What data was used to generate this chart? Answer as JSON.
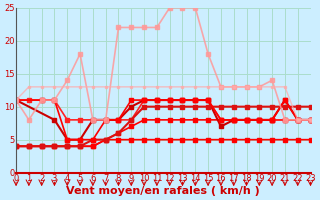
{
  "xlabel": "Vent moyen/en rafales ( km/h )",
  "ylabel": "",
  "xlim": [
    0,
    23
  ],
  "ylim": [
    0,
    25
  ],
  "yticks": [
    0,
    5,
    10,
    15,
    20,
    25
  ],
  "xticks": [
    0,
    1,
    2,
    3,
    4,
    5,
    6,
    7,
    8,
    9,
    10,
    11,
    12,
    13,
    14,
    15,
    16,
    17,
    18,
    19,
    20,
    21,
    22,
    23
  ],
  "bg_color": "#cceeff",
  "grid_color": "#aaddcc",
  "lines": [
    {
      "x": [
        0,
        1,
        2,
        3,
        4,
        5,
        6,
        7,
        8,
        9,
        10,
        11,
        12,
        13,
        14,
        15,
        16,
        17,
        18,
        19,
        20,
        21,
        22,
        23
      ],
      "y": [
        4,
        4,
        4,
        4,
        4,
        4,
        4,
        5,
        5,
        5,
        5,
        5,
        5,
        5,
        5,
        5,
        5,
        5,
        5,
        5,
        5,
        5,
        5,
        5
      ],
      "color": "#ff0000",
      "lw": 1.2,
      "marker": "s",
      "ms": 2.5,
      "alpha": 1.0
    },
    {
      "x": [
        0,
        1,
        2,
        3,
        4,
        5,
        6,
        7,
        8,
        9,
        10,
        11,
        12,
        13,
        14,
        15,
        16,
        17,
        18,
        19,
        20,
        21,
        22,
        23
      ],
      "y": [
        4,
        4,
        4,
        4,
        4,
        4,
        4,
        5,
        6,
        7,
        8,
        8,
        8,
        8,
        8,
        8,
        8,
        8,
        8,
        8,
        8,
        8,
        8,
        8
      ],
      "color": "#ff0000",
      "lw": 1.2,
      "marker": "s",
      "ms": 2.5,
      "alpha": 1.0
    },
    {
      "x": [
        0,
        1,
        2,
        3,
        4,
        5,
        6,
        7,
        8,
        9,
        10,
        11,
        12,
        13,
        14,
        15,
        16,
        17,
        18,
        19,
        20,
        21,
        22,
        23
      ],
      "y": [
        11,
        11,
        11,
        11,
        8,
        8,
        8,
        8,
        8,
        8,
        11,
        11,
        11,
        11,
        11,
        11,
        8,
        8,
        8,
        8,
        8,
        8,
        8,
        8
      ],
      "color": "#ff2222",
      "lw": 1.2,
      "marker": "s",
      "ms": 2.5,
      "alpha": 1.0
    },
    {
      "x": [
        0,
        3,
        4,
        5,
        6,
        7,
        8,
        9,
        10,
        11,
        12,
        13,
        14,
        15,
        16,
        17,
        18,
        19,
        20,
        21,
        22,
        23
      ],
      "y": [
        11,
        8,
        5,
        5,
        8,
        8,
        8,
        10,
        11,
        11,
        11,
        11,
        11,
        11,
        7,
        8,
        8,
        8,
        8,
        11,
        8,
        8
      ],
      "color": "#cc0000",
      "lw": 1.5,
      "marker": "s",
      "ms": 3.0,
      "alpha": 1.0
    },
    {
      "x": [
        0,
        1,
        2,
        3,
        4,
        5,
        6,
        7,
        8,
        9,
        10,
        11,
        12,
        13,
        14,
        15,
        16,
        17,
        18,
        19,
        20,
        21,
        22,
        23
      ],
      "y": [
        4,
        4,
        4,
        4,
        4,
        4,
        5,
        5,
        6,
        8,
        10,
        10,
        10,
        10,
        10,
        10,
        10,
        10,
        10,
        10,
        10,
        10,
        10,
        10
      ],
      "color": "#dd1111",
      "lw": 1.5,
      "marker": "s",
      "ms": 3.0,
      "alpha": 1.0
    },
    {
      "x": [
        0,
        2,
        3,
        4,
        5,
        6,
        7,
        8,
        9,
        10,
        11,
        12,
        13,
        14,
        15,
        16,
        17,
        18,
        19,
        20,
        21,
        22,
        23
      ],
      "y": [
        11,
        11,
        11,
        5,
        5,
        5,
        8,
        8,
        11,
        11,
        11,
        11,
        11,
        11,
        11,
        8,
        8,
        8,
        8,
        8,
        11,
        8,
        8
      ],
      "color": "#ff0000",
      "lw": 1.2,
      "marker": "s",
      "ms": 2.5,
      "alpha": 1.0
    },
    {
      "x": [
        0,
        1,
        2,
        3,
        4,
        5,
        6,
        7,
        8,
        9,
        10,
        11,
        12,
        13,
        14,
        15,
        16,
        17,
        18,
        19,
        20,
        21,
        22,
        23
      ],
      "y": [
        11,
        8,
        11,
        11,
        14,
        18,
        8,
        8,
        22,
        22,
        22,
        22,
        25,
        25,
        25,
        18,
        13,
        13,
        13,
        13,
        14,
        8,
        8,
        8
      ],
      "color": "#ff9999",
      "lw": 1.2,
      "marker": "s",
      "ms": 2.5,
      "alpha": 0.85
    },
    {
      "x": [
        0,
        1,
        2,
        3,
        4,
        5,
        6,
        7,
        8,
        9,
        10,
        11,
        12,
        13,
        14,
        15,
        16,
        17,
        18,
        19,
        20,
        21,
        22,
        23
      ],
      "y": [
        11,
        13,
        13,
        13,
        13,
        13,
        13,
        13,
        13,
        13,
        13,
        13,
        13,
        13,
        13,
        13,
        13,
        13,
        13,
        13,
        13,
        13,
        8,
        8
      ],
      "color": "#ffaaaa",
      "lw": 1.0,
      "marker": "s",
      "ms": 2.0,
      "alpha": 0.75
    }
  ],
  "arrow_color": "#cc0000",
  "tick_label_color": "#cc0000",
  "xlabel_color": "#cc0000",
  "tick_fontsize": 6,
  "xlabel_fontsize": 8
}
